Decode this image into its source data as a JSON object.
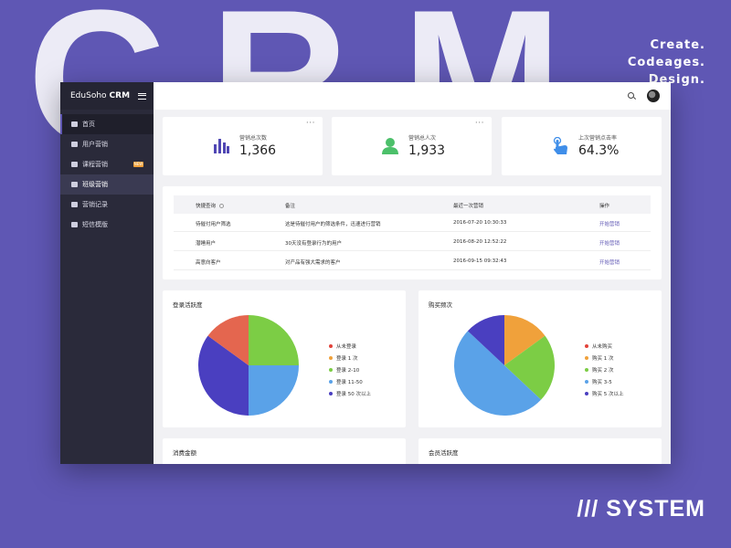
{
  "background": {
    "letters": [
      "C",
      "R",
      "M"
    ],
    "tagline": [
      "Create.",
      "Codeages.",
      "Design."
    ],
    "system_label": "/// SYSTEM",
    "colors": {
      "brand": "#5f57b4",
      "letter": "#ecebf6"
    }
  },
  "sidebar": {
    "brand": {
      "name": "EduSoho",
      "suffix": "CRM"
    },
    "items": [
      {
        "label": "首页",
        "icon": "home-icon"
      },
      {
        "label": "用户营销",
        "icon": "users-icon"
      },
      {
        "label": "课程营销",
        "icon": "course-icon",
        "badge": "NEW"
      },
      {
        "label": "班级营销",
        "icon": "class-icon"
      },
      {
        "label": "营销记录",
        "icon": "bar-chart-icon"
      },
      {
        "label": "短信模版",
        "icon": "message-icon"
      }
    ]
  },
  "stats": [
    {
      "label": "营销总次数",
      "value": "1,366",
      "icon": "bar-chart-icon",
      "color": "#5047b4"
    },
    {
      "label": "营销总人次",
      "value": "1,933",
      "icon": "person-icon",
      "color": "#4cc06a"
    },
    {
      "label": "上次营销点击率",
      "value": "64.3%",
      "icon": "tap-hand-icon",
      "color": "#3f8ee9"
    }
  ],
  "table": {
    "headers": [
      "快捷查询",
      "备注",
      "最近一次营销",
      "操作"
    ],
    "rows": [
      {
        "name": "待催付用户筛选",
        "note": "这是待催付用户的筛选条件，迅速进行营销",
        "time": "2016-07-20 10:30:33",
        "action": "开始营销"
      },
      {
        "name": "潜睡用户",
        "note": "30天没有登录行为的用户",
        "time": "2016-08-20 12:52:22",
        "action": "开始营销"
      },
      {
        "name": "高意向客户",
        "note": "对产品有强大需求的客户",
        "time": "2016-09-15 09:32:43",
        "action": "开始营销"
      }
    ]
  },
  "chart_data": [
    {
      "type": "pie",
      "title": "登录活跃度",
      "series": [
        {
          "name": "从未登录",
          "value": 0,
          "color": "#e2433a"
        },
        {
          "name": "登录 1 次",
          "value": 0,
          "color": "#f0a13b"
        },
        {
          "name": "登录 2-10",
          "value": 25,
          "color": "#7ccd45"
        },
        {
          "name": "登录 11-50",
          "value": 25,
          "color": "#5aa2e8"
        },
        {
          "name": "登录 50 次以上",
          "value": 35,
          "color": "#4a3fc0"
        },
        {
          "name": "",
          "value": 15,
          "color": "#e4664f"
        }
      ]
    },
    {
      "type": "pie",
      "title": "购买频次",
      "series": [
        {
          "name": "从未购买",
          "value": 0,
          "color": "#e2433a"
        },
        {
          "name": "购买 1 次",
          "value": 15,
          "color": "#f0a13b"
        },
        {
          "name": "购买 2 次",
          "value": 22,
          "color": "#7ccd45"
        },
        {
          "name": "购买 3-5",
          "value": 50,
          "color": "#5aa2e8"
        },
        {
          "name": "购买 5 次以上",
          "value": 13,
          "color": "#4a3fc0"
        }
      ]
    }
  ],
  "bottom_cards": [
    "消费金额",
    "会员活跃度"
  ]
}
